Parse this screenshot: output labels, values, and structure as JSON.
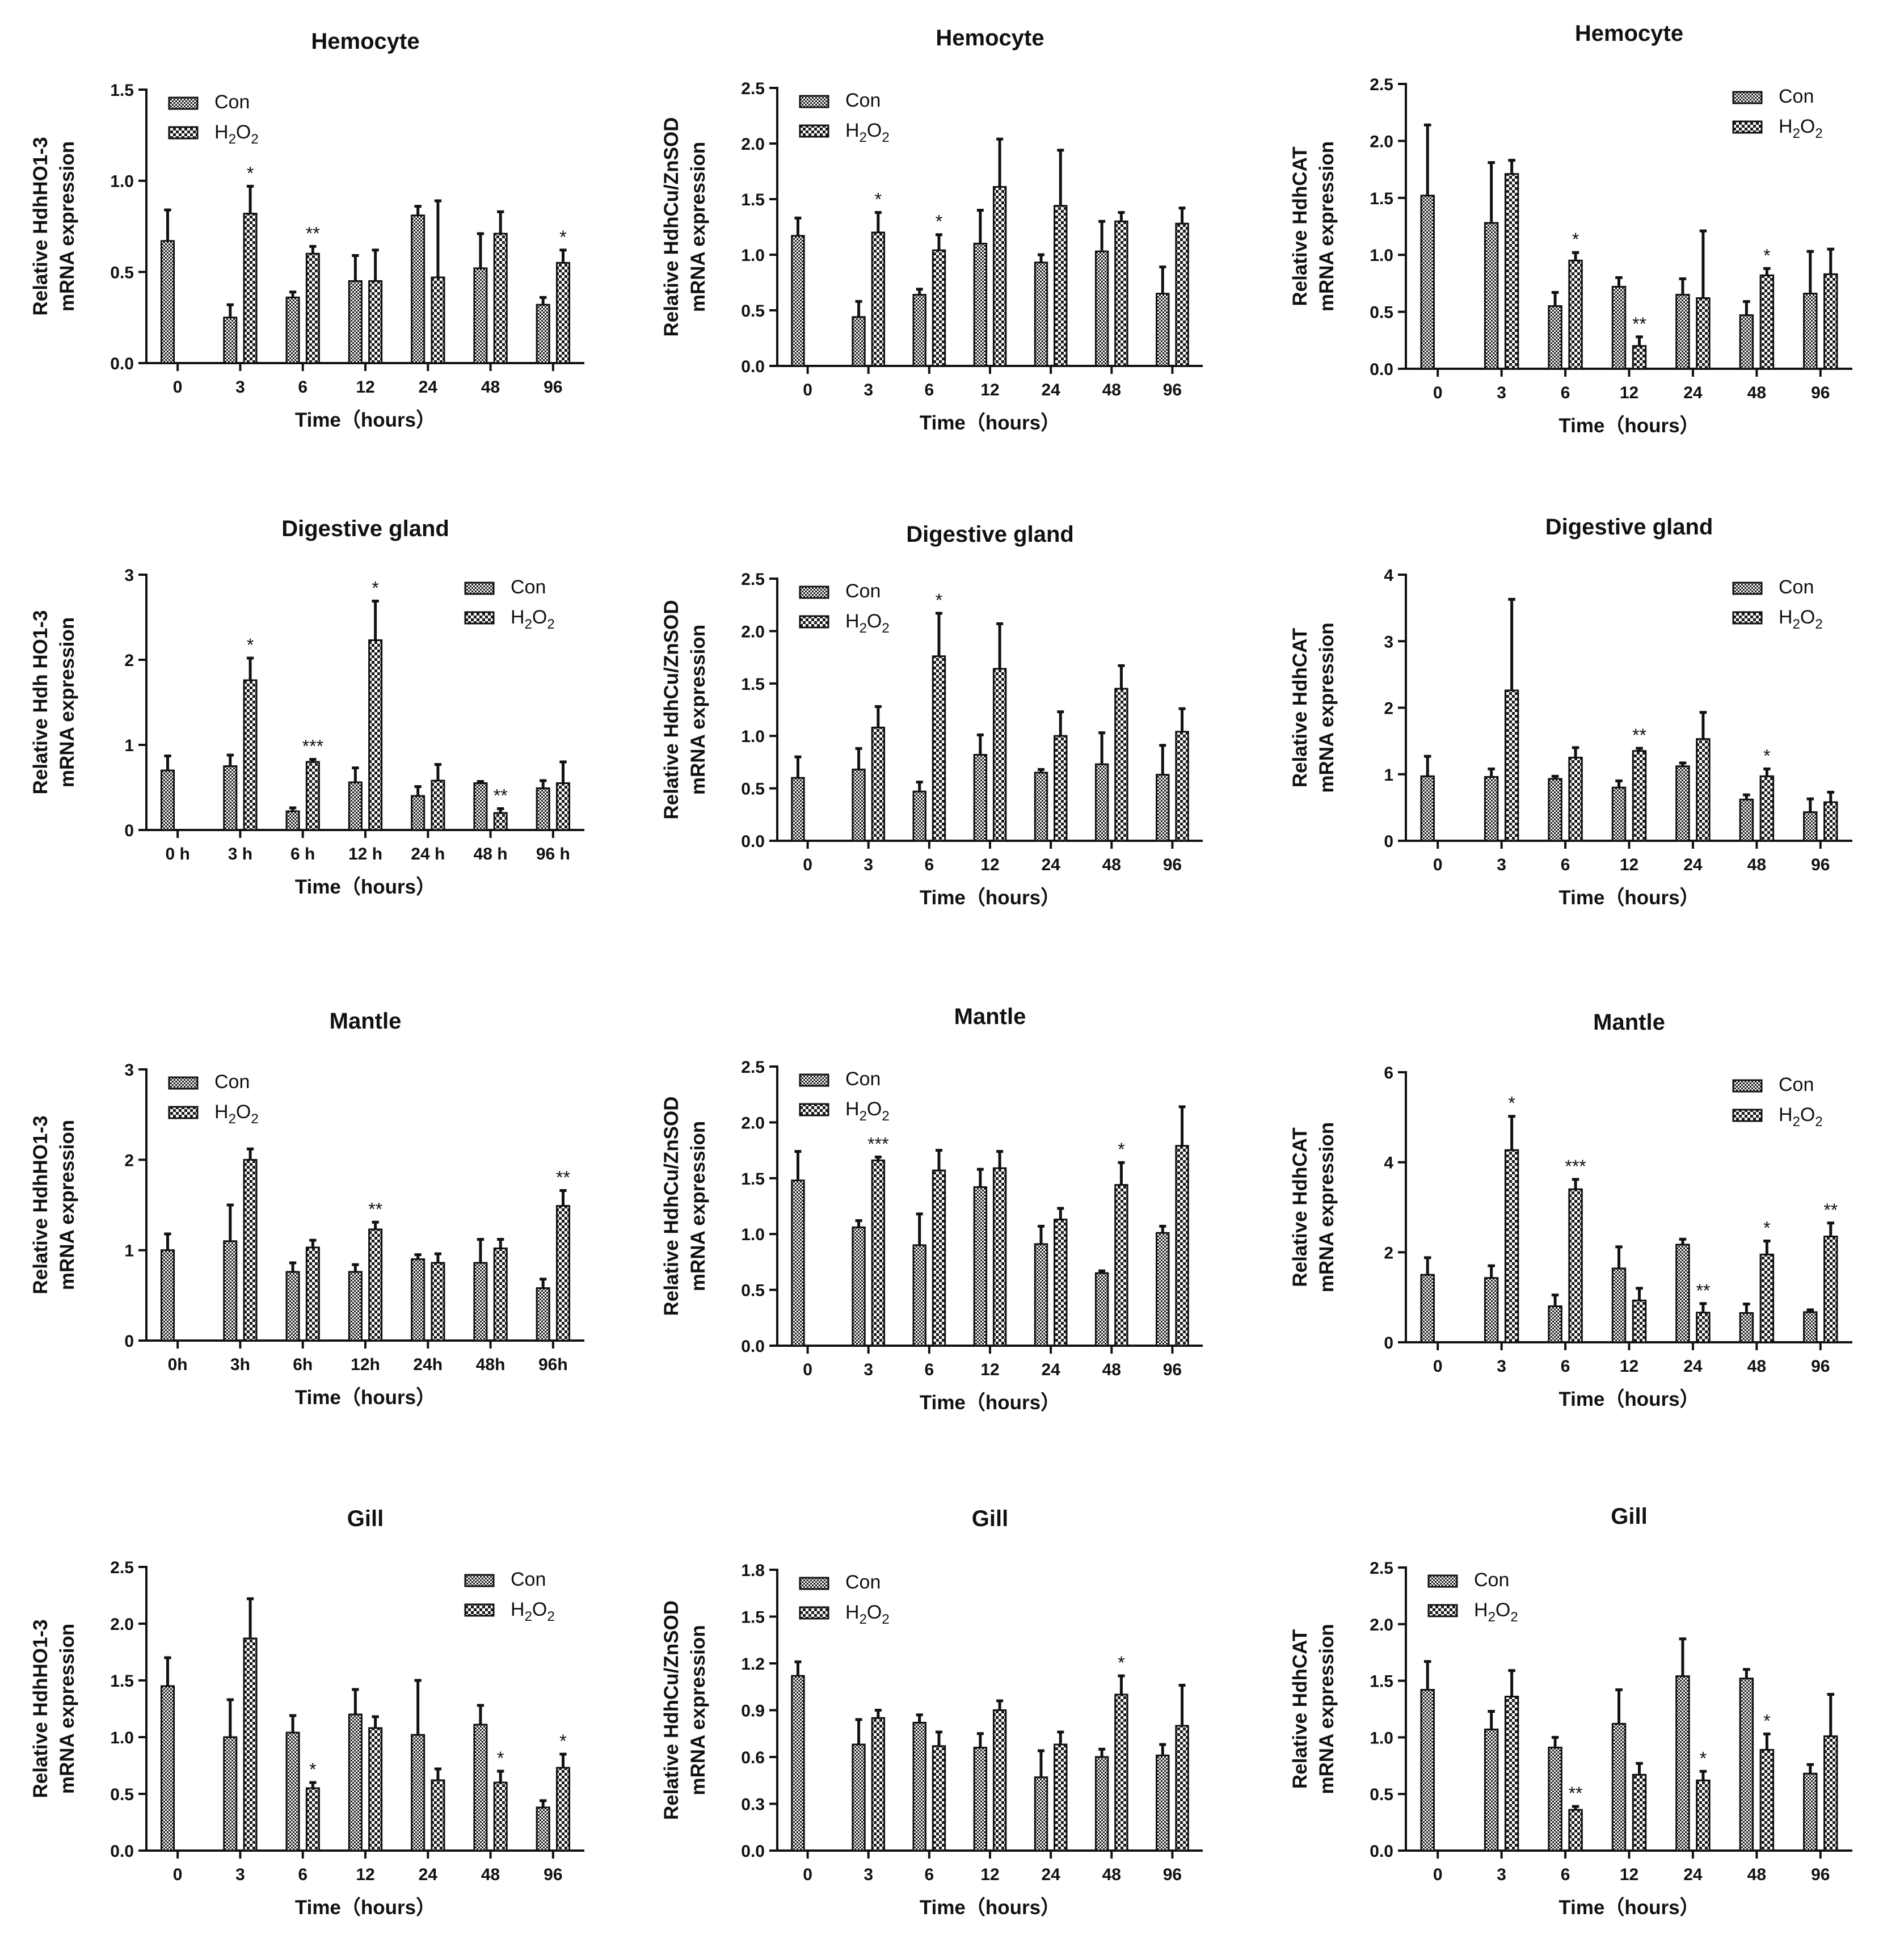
{
  "figure": {
    "colors": {
      "axis": "#111111",
      "bar_edge": "#111111",
      "con_fill": "pattern-dense-checker",
      "h2o2_fill": "pattern-sparse-checker"
    },
    "legend_labels": {
      "con": "Con",
      "h2o2_base": "H",
      "h2o2_sub1": "2",
      "h2o2_mid": "O",
      "h2o2_sub2": "2"
    }
  },
  "chart_data": [
    {
      "type": "bar",
      "title": "Hemocyte",
      "ylabel": [
        "Relative HdhHO1-3",
        "mRNA expression"
      ],
      "xlabel": "Time（hours）",
      "categories": [
        "0",
        "3",
        "6",
        "12",
        "24",
        "48",
        "96"
      ],
      "ylim": [
        0,
        1.5
      ],
      "yticks": [
        "0.0",
        "0.5",
        "1.0",
        "1.5"
      ],
      "ystep": 0.5,
      "legend": "top-left",
      "series": [
        {
          "name": "Con",
          "values": [
            0.67,
            0.25,
            0.36,
            0.45,
            0.81,
            0.52,
            0.32
          ],
          "errors": [
            0.17,
            0.07,
            0.03,
            0.14,
            0.05,
            0.19,
            0.04
          ]
        },
        {
          "name": "H2O2",
          "values": [
            null,
            0.82,
            0.6,
            0.45,
            0.47,
            0.71,
            0.55
          ],
          "errors": [
            null,
            0.15,
            0.04,
            0.17,
            0.42,
            0.12,
            0.07
          ]
        }
      ],
      "significance": [
        "",
        "*",
        "**",
        "",
        "",
        "",
        "*"
      ]
    },
    {
      "type": "bar",
      "title": "Hemocyte",
      "ylabel": [
        "Relative HdhCu/ZnSOD",
        "mRNA expression"
      ],
      "xlabel": "Time（hours）",
      "categories": [
        "0",
        "3",
        "6",
        "12",
        "24",
        "48",
        "96"
      ],
      "ylim": [
        0,
        2.5
      ],
      "yticks": [
        "0.0",
        "0.5",
        "1.0",
        "1.5",
        "2.0",
        "2.5"
      ],
      "ystep": 0.5,
      "legend": "top-left",
      "series": [
        {
          "name": "Con",
          "values": [
            1.17,
            0.44,
            0.64,
            1.1,
            0.93,
            1.03,
            0.65
          ],
          "errors": [
            0.16,
            0.14,
            0.05,
            0.3,
            0.07,
            0.27,
            0.24
          ]
        },
        {
          "name": "H2O2",
          "values": [
            null,
            1.2,
            1.04,
            1.61,
            1.44,
            1.3,
            1.28
          ],
          "errors": [
            null,
            0.18,
            0.14,
            0.43,
            0.5,
            0.08,
            0.14
          ]
        }
      ],
      "significance": [
        "",
        "*",
        "*",
        "",
        "",
        "",
        ""
      ]
    },
    {
      "type": "bar",
      "title": "Hemocyte",
      "ylabel": [
        "Relative HdhCAT",
        "mRNA expression"
      ],
      "xlabel": "Time（hours）",
      "categories": [
        "0",
        "3",
        "6",
        "12",
        "24",
        "48",
        "96"
      ],
      "ylim": [
        0,
        2.5
      ],
      "yticks": [
        "0.0",
        "0.5",
        "1.0",
        "1.5",
        "2.0",
        "2.5"
      ],
      "ystep": 0.5,
      "legend": "top-right",
      "series": [
        {
          "name": "Con",
          "values": [
            1.52,
            1.28,
            0.55,
            0.72,
            0.65,
            0.47,
            0.66
          ],
          "errors": [
            0.62,
            0.53,
            0.12,
            0.08,
            0.14,
            0.12,
            0.37
          ]
        },
        {
          "name": "H2O2",
          "values": [
            null,
            1.71,
            0.95,
            0.2,
            0.62,
            0.82,
            0.83
          ],
          "errors": [
            null,
            0.12,
            0.07,
            0.08,
            0.59,
            0.06,
            0.22
          ]
        }
      ],
      "significance": [
        "",
        "",
        "*",
        "**",
        "",
        "*",
        ""
      ]
    },
    {
      "type": "bar",
      "title": "Digestive gland",
      "ylabel": [
        "Relative Hdh HO1-3",
        "mRNA expression"
      ],
      "xlabel": "Time（hours）",
      "categories": [
        "0 h",
        "3 h",
        "6 h",
        "12 h",
        "24 h",
        "48 h",
        "96 h"
      ],
      "ylim": [
        0,
        3
      ],
      "yticks": [
        "0",
        "1",
        "2",
        "3"
      ],
      "ystep": 1,
      "legend": "top-right",
      "series": [
        {
          "name": "Con",
          "values": [
            0.7,
            0.75,
            0.22,
            0.56,
            0.4,
            0.55,
            0.49
          ],
          "errors": [
            0.17,
            0.13,
            0.04,
            0.17,
            0.11,
            0.02,
            0.09
          ]
        },
        {
          "name": "H2O2",
          "values": [
            null,
            1.76,
            0.8,
            2.23,
            0.58,
            0.2,
            0.55
          ],
          "errors": [
            null,
            0.26,
            0.03,
            0.46,
            0.19,
            0.05,
            0.25
          ]
        }
      ],
      "significance": [
        "",
        "*",
        "***",
        "*",
        "",
        "**",
        ""
      ]
    },
    {
      "type": "bar",
      "title": "Digestive gland",
      "ylabel": [
        "Relative HdhCu/ZnSOD",
        "mRNA expression"
      ],
      "xlabel": "Time（hours）",
      "categories": [
        "0",
        "3",
        "6",
        "12",
        "24",
        "48",
        "96"
      ],
      "ylim": [
        0,
        2.5
      ],
      "yticks": [
        "0.0",
        "0.5",
        "1.0",
        "1.5",
        "2.0",
        "2.5"
      ],
      "ystep": 0.5,
      "legend": "top-left",
      "series": [
        {
          "name": "Con",
          "values": [
            0.6,
            0.68,
            0.47,
            0.82,
            0.65,
            0.73,
            0.63
          ],
          "errors": [
            0.2,
            0.2,
            0.09,
            0.19,
            0.03,
            0.3,
            0.28
          ]
        },
        {
          "name": "H2O2",
          "values": [
            null,
            1.08,
            1.76,
            1.64,
            1.0,
            1.45,
            1.04
          ],
          "errors": [
            null,
            0.2,
            0.41,
            0.43,
            0.23,
            0.22,
            0.22
          ]
        }
      ],
      "significance": [
        "",
        "",
        "*",
        "",
        "",
        "",
        ""
      ]
    },
    {
      "type": "bar",
      "title": "Digestive gland",
      "ylabel": [
        "Relative HdhCAT",
        "mRNA expression"
      ],
      "xlabel": "Time（hours）",
      "categories": [
        "0",
        "3",
        "6",
        "12",
        "24",
        "48",
        "96"
      ],
      "ylim": [
        0,
        4
      ],
      "yticks": [
        "0",
        "1",
        "2",
        "3",
        "4"
      ],
      "ystep": 1,
      "legend": "top-right",
      "series": [
        {
          "name": "Con",
          "values": [
            0.97,
            0.96,
            0.93,
            0.8,
            1.12,
            0.62,
            0.43
          ],
          "errors": [
            0.3,
            0.12,
            0.04,
            0.1,
            0.05,
            0.07,
            0.2
          ]
        },
        {
          "name": "H2O2",
          "values": [
            null,
            2.26,
            1.25,
            1.35,
            1.53,
            0.97,
            0.58
          ],
          "errors": [
            null,
            1.37,
            0.15,
            0.04,
            0.4,
            0.11,
            0.15
          ]
        }
      ],
      "significance": [
        "",
        "",
        "",
        "**",
        "",
        "*",
        ""
      ]
    },
    {
      "type": "bar",
      "title": "Mantle",
      "ylabel": [
        "Relative HdhHO1-3",
        "mRNA expression"
      ],
      "xlabel": "Time（hours）",
      "categories": [
        "0h",
        "3h",
        "6h",
        "12h",
        "24h",
        "48h",
        "96h"
      ],
      "ylim": [
        0,
        3
      ],
      "yticks": [
        "0",
        "1",
        "2",
        "3"
      ],
      "ystep": 1,
      "legend": "top-left",
      "series": [
        {
          "name": "Con",
          "values": [
            1.0,
            1.1,
            0.76,
            0.76,
            0.9,
            0.86,
            0.58
          ],
          "errors": [
            0.18,
            0.4,
            0.1,
            0.08,
            0.05,
            0.26,
            0.1
          ]
        },
        {
          "name": "H2O2",
          "values": [
            null,
            2.0,
            1.03,
            1.23,
            0.86,
            1.02,
            1.49
          ],
          "errors": [
            null,
            0.12,
            0.08,
            0.08,
            0.1,
            0.1,
            0.17
          ]
        }
      ],
      "significance": [
        "",
        "",
        "",
        "**",
        "",
        "",
        "**"
      ]
    },
    {
      "type": "bar",
      "title": "Mantle",
      "ylabel": [
        "Relative HdhCu/ZnSOD",
        "mRNA expression"
      ],
      "xlabel": "Time（hours）",
      "categories": [
        "0",
        "3",
        "6",
        "12",
        "24",
        "48",
        "96"
      ],
      "ylim": [
        0,
        2.5
      ],
      "yticks": [
        "0.0",
        "0.5",
        "1.0",
        "1.5",
        "2.0",
        "2.5"
      ],
      "ystep": 0.5,
      "legend": "top-left",
      "series": [
        {
          "name": "Con",
          "values": [
            1.48,
            1.06,
            0.9,
            1.42,
            0.91,
            0.65,
            1.01
          ],
          "errors": [
            0.26,
            0.06,
            0.28,
            0.16,
            0.16,
            0.02,
            0.06
          ]
        },
        {
          "name": "H2O2",
          "values": [
            null,
            1.66,
            1.57,
            1.59,
            1.13,
            1.44,
            1.79
          ],
          "errors": [
            null,
            0.03,
            0.18,
            0.15,
            0.1,
            0.2,
            0.35
          ]
        }
      ],
      "significance": [
        "",
        "***",
        "",
        "",
        "",
        "*",
        ""
      ]
    },
    {
      "type": "bar",
      "title": "Mantle",
      "ylabel": [
        "Relative HdhCAT",
        "mRNA expression"
      ],
      "xlabel": "Time（hours）",
      "categories": [
        "0",
        "3",
        "6",
        "12",
        "24",
        "48",
        "96"
      ],
      "ylim": [
        0,
        6
      ],
      "yticks": [
        "0",
        "2",
        "4",
        "6"
      ],
      "ystep": 2,
      "legend": "top-right",
      "series": [
        {
          "name": "Con",
          "values": [
            1.5,
            1.43,
            0.8,
            1.64,
            2.17,
            0.65,
            0.67
          ],
          "errors": [
            0.38,
            0.27,
            0.25,
            0.48,
            0.12,
            0.2,
            0.05
          ]
        },
        {
          "name": "H2O2",
          "values": [
            null,
            4.27,
            3.4,
            0.93,
            0.66,
            1.95,
            2.35
          ],
          "errors": [
            null,
            0.75,
            0.22,
            0.27,
            0.2,
            0.3,
            0.3
          ]
        }
      ],
      "significance": [
        "",
        "*",
        "***",
        "",
        "**",
        "*",
        "**"
      ]
    },
    {
      "type": "bar",
      "title": "Gill",
      "ylabel": [
        "Relative HdhHO1-3",
        "mRNA expression"
      ],
      "xlabel": "Time（hours）",
      "categories": [
        "0",
        "3",
        "6",
        "12",
        "24",
        "48",
        "96"
      ],
      "ylim": [
        0,
        2.5
      ],
      "yticks": [
        "0.0",
        "0.5",
        "1.0",
        "1.5",
        "2.0",
        "2.5"
      ],
      "ystep": 0.5,
      "legend": "top-right",
      "series": [
        {
          "name": "Con",
          "values": [
            1.45,
            1.0,
            1.04,
            1.2,
            1.02,
            1.11,
            0.38
          ],
          "errors": [
            0.25,
            0.33,
            0.15,
            0.22,
            0.48,
            0.17,
            0.06
          ]
        },
        {
          "name": "H2O2",
          "values": [
            null,
            1.87,
            0.55,
            1.08,
            0.62,
            0.6,
            0.73
          ],
          "errors": [
            null,
            0.35,
            0.05,
            0.1,
            0.1,
            0.1,
            0.12
          ]
        }
      ],
      "significance": [
        "",
        "",
        "*",
        "",
        "",
        "*",
        "*"
      ]
    },
    {
      "type": "bar",
      "title": "Gill",
      "ylabel": [
        "Relative HdhCu/ZnSOD",
        "mRNA expression"
      ],
      "xlabel": "Time（hours）",
      "categories": [
        "0",
        "3",
        "6",
        "12",
        "24",
        "48",
        "96"
      ],
      "ylim": [
        0,
        1.8
      ],
      "yticks": [
        "0.0",
        "0.3",
        "0.6",
        "0.9",
        "1.2",
        "1.5",
        "1.8"
      ],
      "ystep": 0.3,
      "legend": "top-left",
      "series": [
        {
          "name": "Con",
          "values": [
            1.12,
            0.68,
            0.82,
            0.66,
            0.47,
            0.6,
            0.61
          ],
          "errors": [
            0.09,
            0.16,
            0.05,
            0.09,
            0.17,
            0.05,
            0.07
          ]
        },
        {
          "name": "H2O2",
          "values": [
            null,
            0.85,
            0.67,
            0.9,
            0.68,
            1.0,
            0.8
          ],
          "errors": [
            null,
            0.05,
            0.09,
            0.06,
            0.08,
            0.12,
            0.26
          ]
        }
      ],
      "significance": [
        "",
        "",
        "",
        "",
        "",
        "*",
        ""
      ]
    },
    {
      "type": "bar",
      "title": "Gill",
      "ylabel": [
        "Relative HdhCAT",
        "mRNA expression"
      ],
      "xlabel": "Time（hours）",
      "categories": [
        "0",
        "3",
        "6",
        "12",
        "24",
        "48",
        "96"
      ],
      "ylim": [
        0,
        2.5
      ],
      "yticks": [
        "0.0",
        "0.5",
        "1.0",
        "1.5",
        "2.0",
        "2.5"
      ],
      "ystep": 0.5,
      "legend": "top-left",
      "series": [
        {
          "name": "Con",
          "values": [
            1.42,
            1.07,
            0.91,
            1.12,
            1.54,
            1.52,
            0.68
          ],
          "errors": [
            0.25,
            0.16,
            0.09,
            0.3,
            0.33,
            0.08,
            0.08
          ]
        },
        {
          "name": "H2O2",
          "values": [
            null,
            1.36,
            0.36,
            0.67,
            0.62,
            0.89,
            1.01
          ],
          "errors": [
            null,
            0.23,
            0.03,
            0.1,
            0.08,
            0.14,
            0.37
          ]
        }
      ],
      "significance": [
        "",
        "",
        "**",
        "",
        "*",
        "*",
        ""
      ]
    }
  ]
}
